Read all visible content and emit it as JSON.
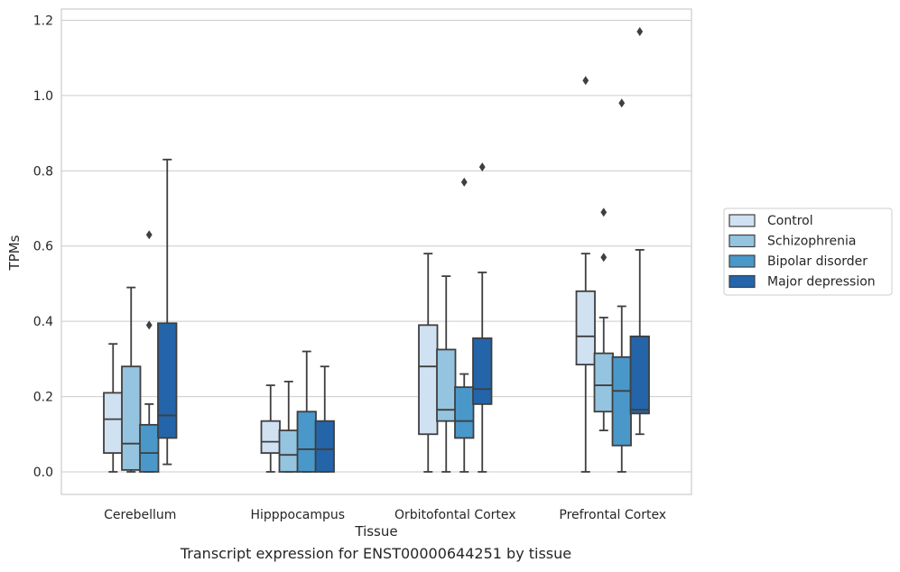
{
  "caption": "Transcript expression for ENST00000644251 by tissue",
  "chart_data": {
    "type": "box",
    "title": "",
    "xlabel": "Tissue",
    "ylabel": "TPMs",
    "ylim": [
      -0.06,
      1.23
    ],
    "yticks": [
      "0.0",
      "0.2",
      "0.4",
      "0.6",
      "0.8",
      "1.0",
      "1.2"
    ],
    "grid": "horizontal",
    "legend_position": "right",
    "categories": [
      "Cerebellum",
      "Hipppocampus",
      "Orbitofontal Cortex",
      "Prefrontal Cortex"
    ],
    "series": [
      {
        "name": "Control",
        "color": "#d0e1f2",
        "boxes": [
          {
            "whislo": 0.0,
            "q1": 0.05,
            "med": 0.14,
            "q3": 0.21,
            "whishi": 0.34,
            "fliers": []
          },
          {
            "whislo": 0.0,
            "q1": 0.05,
            "med": 0.08,
            "q3": 0.135,
            "whishi": 0.23,
            "fliers": []
          },
          {
            "whislo": 0.0,
            "q1": 0.1,
            "med": 0.28,
            "q3": 0.39,
            "whishi": 0.58,
            "fliers": []
          },
          {
            "whislo": 0.0,
            "q1": 0.285,
            "med": 0.36,
            "q3": 0.48,
            "whishi": 0.58,
            "fliers": [
              1.04
            ]
          }
        ]
      },
      {
        "name": "Schizophrenia",
        "color": "#94c4df",
        "boxes": [
          {
            "whislo": 0.0,
            "q1": 0.005,
            "med": 0.075,
            "q3": 0.28,
            "whishi": 0.49,
            "fliers": []
          },
          {
            "whislo": 0.0,
            "q1": 0.0,
            "med": 0.045,
            "q3": 0.11,
            "whishi": 0.24,
            "fliers": []
          },
          {
            "whislo": 0.0,
            "q1": 0.135,
            "med": 0.165,
            "q3": 0.325,
            "whishi": 0.52,
            "fliers": []
          },
          {
            "whislo": 0.11,
            "q1": 0.16,
            "med": 0.23,
            "q3": 0.315,
            "whishi": 0.41,
            "fliers": [
              0.57,
              0.69
            ]
          }
        ]
      },
      {
        "name": "Bipolar disorder",
        "color": "#4a98c9",
        "boxes": [
          {
            "whislo": 0.0,
            "q1": 0.0,
            "med": 0.05,
            "q3": 0.125,
            "whishi": 0.18,
            "fliers": [
              0.39,
              0.63
            ]
          },
          {
            "whislo": 0.0,
            "q1": 0.0,
            "med": 0.06,
            "q3": 0.16,
            "whishi": 0.32,
            "fliers": []
          },
          {
            "whislo": 0.0,
            "q1": 0.09,
            "med": 0.135,
            "q3": 0.225,
            "whishi": 0.26,
            "fliers": [
              0.77
            ]
          },
          {
            "whislo": 0.0,
            "q1": 0.07,
            "med": 0.215,
            "q3": 0.305,
            "whishi": 0.44,
            "fliers": [
              0.98
            ]
          }
        ]
      },
      {
        "name": "Major depression",
        "color": "#2464a9",
        "boxes": [
          {
            "whislo": 0.02,
            "q1": 0.09,
            "med": 0.15,
            "q3": 0.395,
            "whishi": 0.83,
            "fliers": []
          },
          {
            "whislo": 0.0,
            "q1": 0.0,
            "med": 0.06,
            "q3": 0.135,
            "whishi": 0.28,
            "fliers": []
          },
          {
            "whislo": 0.0,
            "q1": 0.18,
            "med": 0.22,
            "q3": 0.355,
            "whishi": 0.53,
            "fliers": [
              0.81
            ]
          },
          {
            "whislo": 0.1,
            "q1": 0.155,
            "med": 0.165,
            "q3": 0.36,
            "whishi": 0.59,
            "fliers": [
              1.17
            ]
          }
        ]
      }
    ]
  }
}
